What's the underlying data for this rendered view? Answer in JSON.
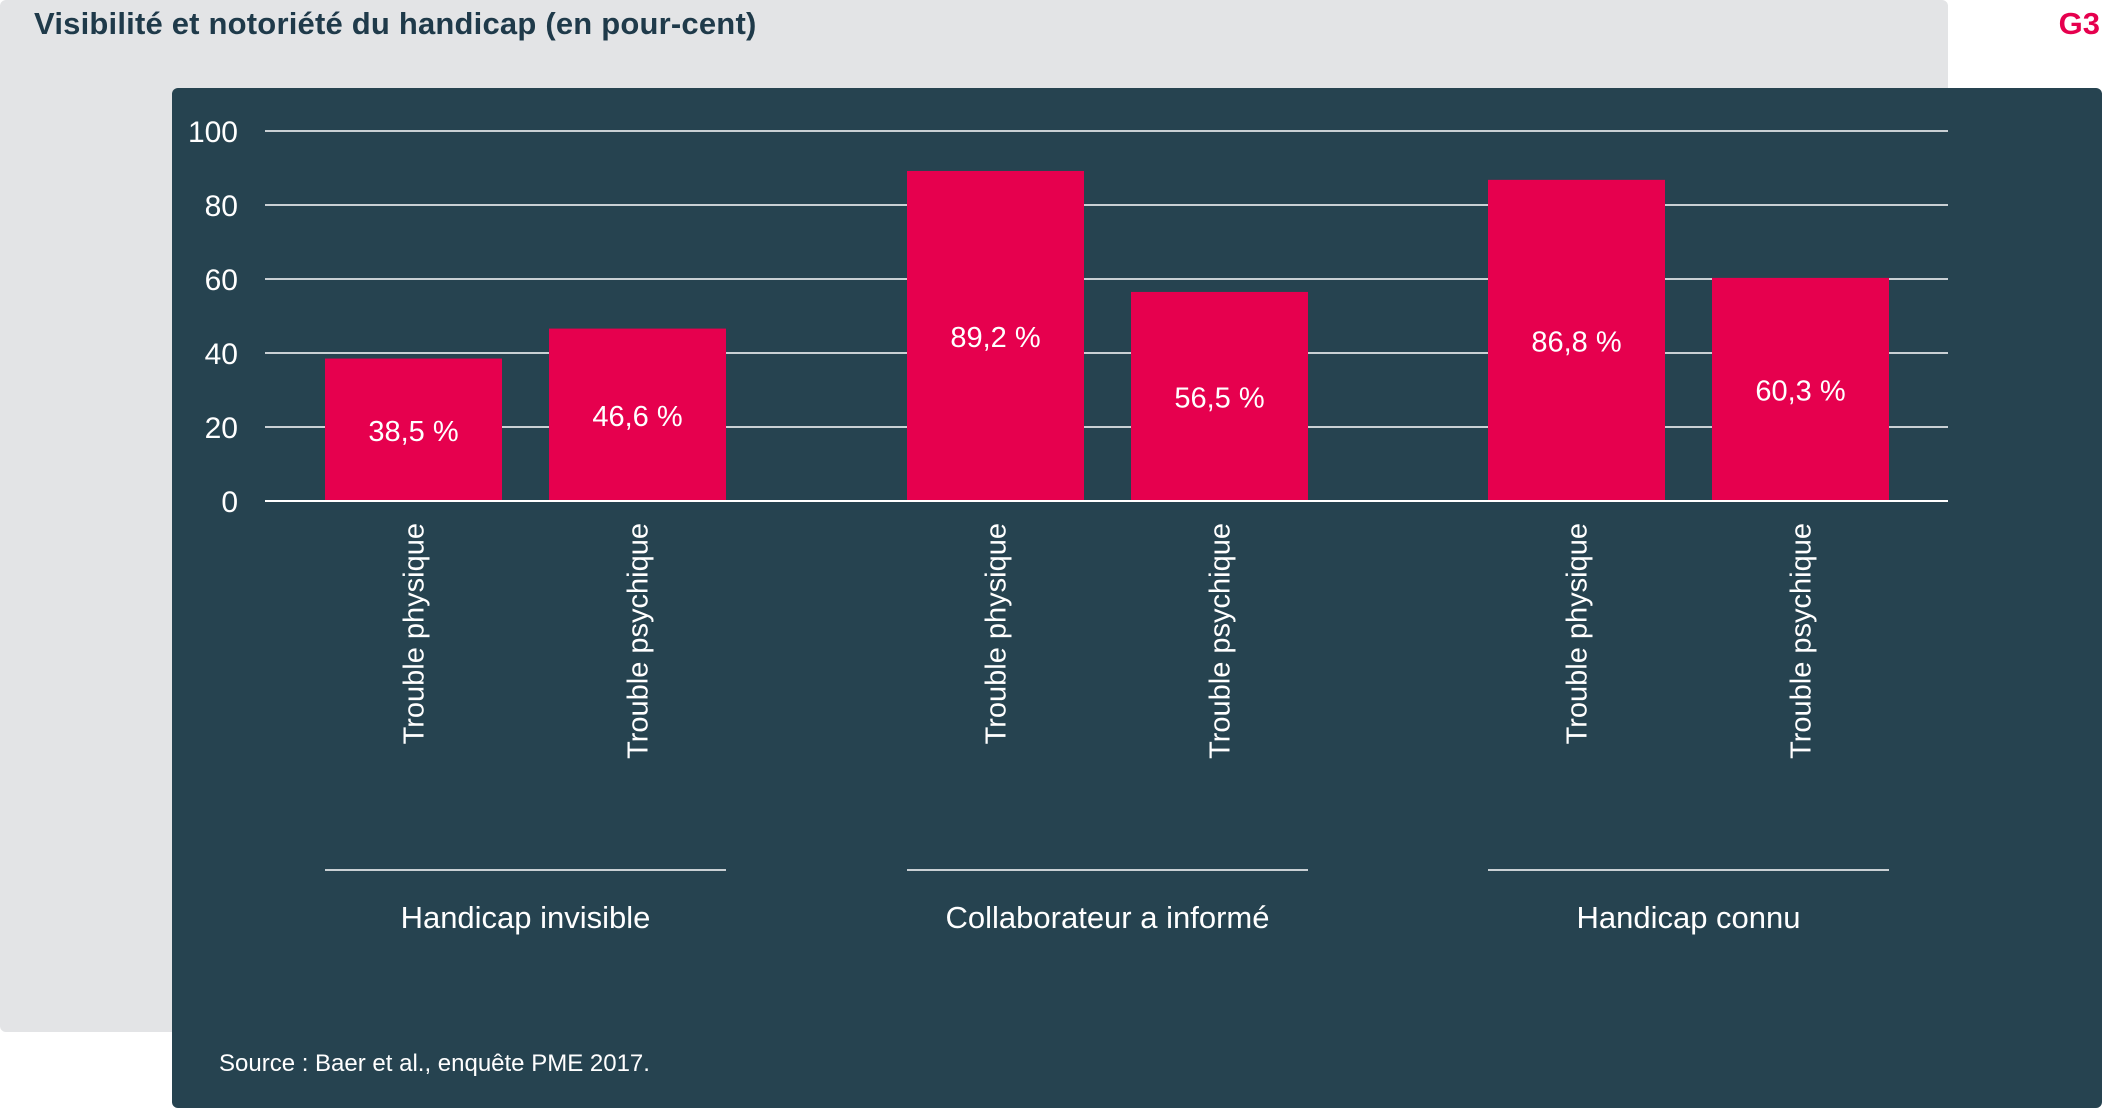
{
  "header": {
    "title": "Visibilité et notoriété du handicap (en pour-cent)",
    "figure_code": "G3"
  },
  "source": "Source : Baer et al., enquête PME 2017.",
  "colors": {
    "bar": "#e6004e",
    "panel": "#264350",
    "background_panel": "#e3e4e6",
    "title": "#1f3a4a",
    "grid": "#ffffff"
  },
  "chart_data": {
    "type": "bar",
    "title": "Visibilité et notoriété du handicap (en pour-cent)",
    "ylim": [
      0,
      100
    ],
    "yticks": [
      0,
      20,
      40,
      60,
      80,
      100
    ],
    "grid": true,
    "groups": [
      {
        "name": "Handicap invisible",
        "bars": [
          {
            "category": "Trouble physique",
            "value": 38.5,
            "label": "38,5 %"
          },
          {
            "category": "Trouble psychique",
            "value": 46.6,
            "label": "46,6 %"
          }
        ]
      },
      {
        "name": "Collaborateur a informé",
        "bars": [
          {
            "category": "Trouble physique",
            "value": 89.2,
            "label": "89,2 %"
          },
          {
            "category": "Trouble psychique",
            "value": 56.5,
            "label": "56,5 %"
          }
        ]
      },
      {
        "name": "Handicap connu",
        "bars": [
          {
            "category": "Trouble physique",
            "value": 86.8,
            "label": "86,8 %"
          },
          {
            "category": "Trouble psychique",
            "value": 60.3,
            "label": "60,3 %"
          }
        ]
      }
    ]
  }
}
